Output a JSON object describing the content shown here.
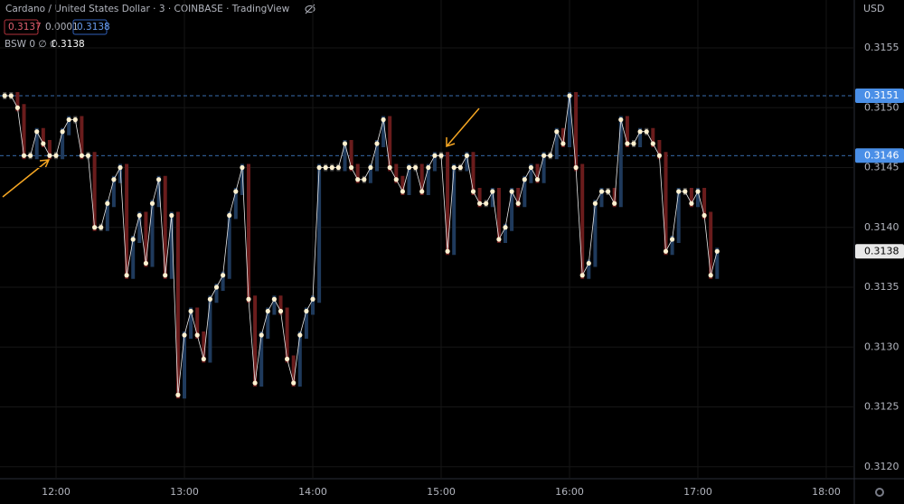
{
  "chart_data": {
    "type": "line",
    "title": "Cardano / United States Dollar · 3 · COINBASE · TradingView",
    "bid": 0.3137,
    "spread": 0.0001,
    "ask": 0.3138,
    "indicator": "BSW 0  ∅  ∅",
    "indicator_value": 0.3138,
    "currency": "USD",
    "x": [
      696,
      699,
      702,
      705,
      708,
      711,
      714,
      717,
      720,
      723,
      726,
      729,
      732,
      735,
      738,
      741,
      744,
      747,
      750,
      753,
      756,
      759,
      762,
      765,
      768,
      771,
      774,
      777,
      780,
      783,
      786,
      789,
      792,
      795,
      798,
      801,
      804,
      807,
      810,
      813,
      816,
      819,
      822,
      825,
      828,
      831,
      834,
      837,
      840,
      843,
      846,
      849,
      852,
      855,
      858,
      861,
      864,
      867,
      870,
      873,
      876,
      879,
      882,
      885,
      888,
      891,
      894,
      897,
      900,
      903,
      906,
      909,
      912,
      915,
      918,
      921,
      924,
      927,
      930,
      933,
      936,
      939,
      942,
      945,
      948,
      951,
      954,
      957,
      960,
      963,
      966,
      969,
      972,
      975,
      978,
      981,
      984,
      987,
      990,
      993,
      996,
      999,
      1002,
      1005,
      1008,
      1011,
      1014,
      1017,
      1020,
      1023,
      1026,
      1029
    ],
    "series": [
      {
        "color": "#e8e8e8",
        "values": [
          0.3151,
          0.3151,
          0.315,
          0.3146,
          0.3146,
          0.3148,
          0.3147,
          0.3146,
          0.3146,
          0.3148,
          0.3149,
          0.3149,
          0.3146,
          0.3146,
          0.314,
          0.314,
          0.3142,
          0.3144,
          0.3145,
          0.3136,
          0.3139,
          0.3141,
          0.3137,
          0.3142,
          0.3144,
          0.3136,
          0.3141,
          0.3126,
          0.3131,
          0.3133,
          0.3131,
          0.3129,
          0.3134,
          0.3135,
          0.3136,
          0.3141,
          0.3143,
          0.3145,
          0.3134,
          0.3127,
          0.3131,
          0.3133,
          0.3134,
          0.3133,
          0.3129,
          0.3127,
          0.3131,
          0.3133,
          0.3134,
          0.3145,
          0.3145,
          0.3145,
          0.3145,
          0.3147,
          0.3145,
          0.3144,
          0.3144,
          0.3145,
          0.3147,
          0.3149,
          0.3145,
          0.3144,
          0.3143,
          0.3145,
          0.3145,
          0.3143,
          0.3145,
          0.3146,
          0.3146,
          0.3138,
          0.3145,
          0.3145,
          0.3146,
          0.3143,
          0.3142,
          0.3142,
          0.3143,
          0.3139,
          0.314,
          0.3143,
          0.3142,
          0.3144,
          0.3145,
          0.3144,
          0.3146,
          0.3146,
          0.3148,
          0.3147,
          0.3151,
          0.3145,
          0.3136,
          0.3137,
          0.3142,
          0.3143,
          0.3143,
          0.3142,
          0.3149,
          0.3147,
          0.3147,
          0.3148,
          0.3148,
          0.3147,
          0.3146,
          0.3138,
          0.3139,
          0.3143,
          0.3143,
          0.3142,
          0.3143,
          0.3141,
          0.3136,
          0.3138
        ]
      }
    ],
    "up_color": "#1f3a5c",
    "down_color": "#6a1c1c",
    "flat_color": "#4a4a4a",
    "dot_color": "#fff1d0",
    "hlines": [
      0.3151,
      0.3146
    ],
    "hline_color": "#4a8fe7",
    "xlim": [
      693.8,
      1093.1
    ],
    "xticks": [
      {
        "value": 720,
        "label": "12:00"
      },
      {
        "value": 780,
        "label": "13:00"
      },
      {
        "value": 840,
        "label": "14:00"
      },
      {
        "value": 900,
        "label": "15:00"
      },
      {
        "value": 960,
        "label": "16:00"
      },
      {
        "value": 1020,
        "label": "17:00"
      },
      {
        "value": 1080,
        "label": "18:00"
      }
    ],
    "ylim": [
      0.3119,
      0.3159
    ],
    "yticks": [
      {
        "value": 0.312,
        "label": "0.3120"
      },
      0.3125,
      {
        "value": 0.313,
        "label": "0.3130"
      },
      0.3135,
      {
        "value": 0.314,
        "label": "0.3140"
      },
      0.3145,
      {
        "value": 0.315,
        "label": "0.3150"
      },
      0.3155
    ]
  }
}
